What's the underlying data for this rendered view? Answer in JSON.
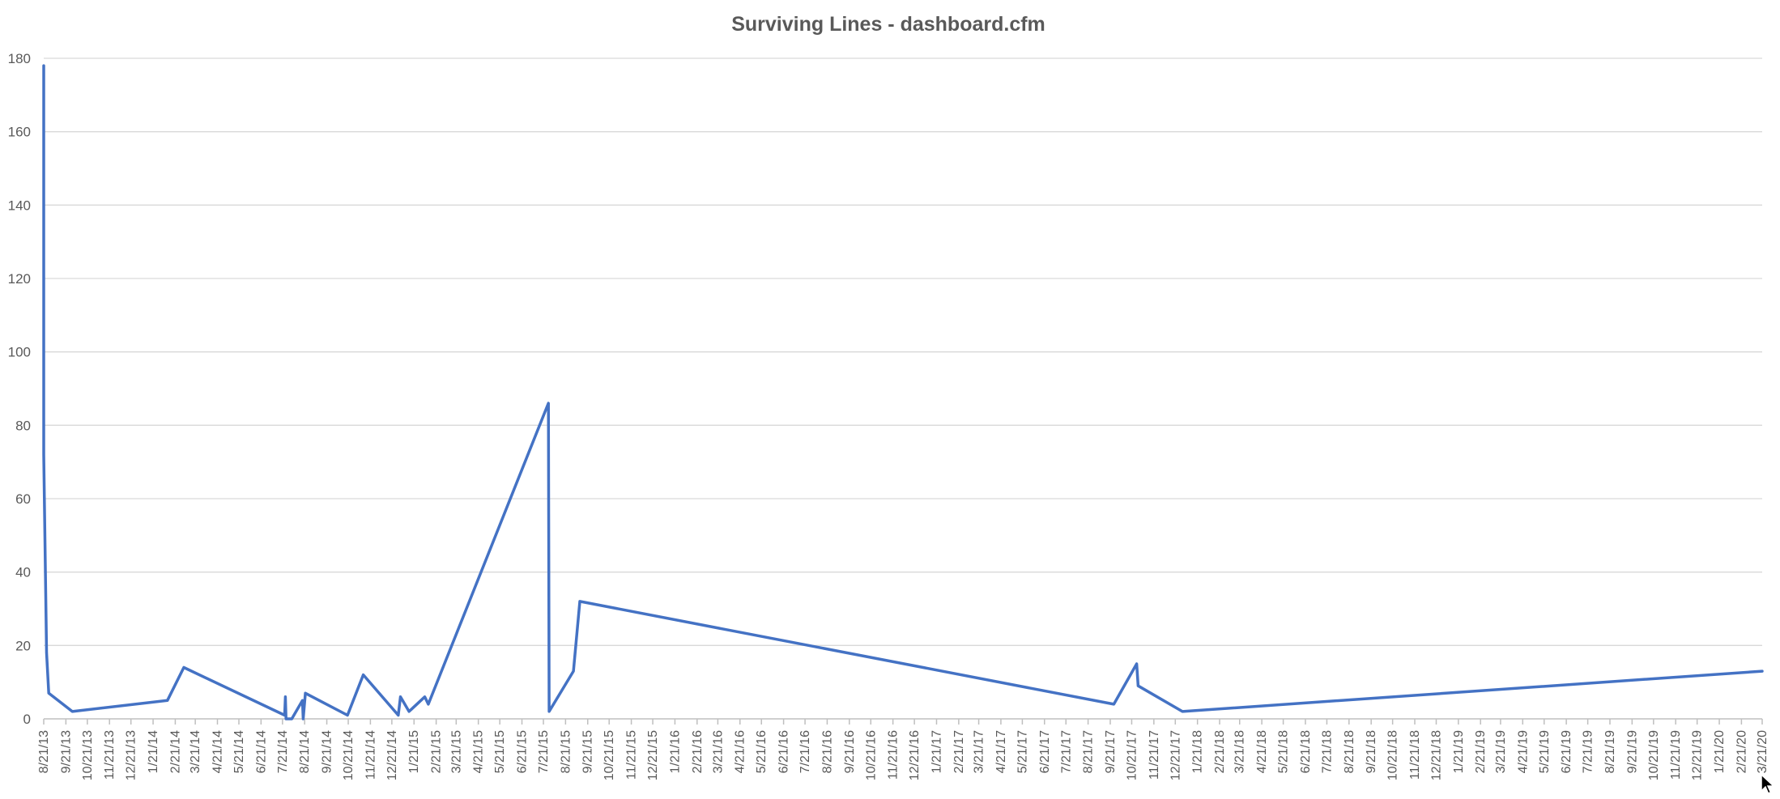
{
  "colors": {
    "series": "#4472C4",
    "grid": "#d9d9d9",
    "text": "#595959"
  },
  "chart_data": {
    "type": "line",
    "title": "Surviving Lines - dashboard.cfm",
    "xlabel": "",
    "ylabel": "",
    "ylim": [
      0,
      180
    ],
    "yticks": [
      0,
      20,
      40,
      60,
      80,
      100,
      120,
      140,
      160,
      180
    ],
    "grid": true,
    "legend": "none",
    "categories": [
      "8/21/13",
      "9/21/13",
      "10/21/13",
      "11/21/13",
      "12/21/13",
      "1/21/14",
      "2/21/14",
      "3/21/14",
      "4/21/14",
      "5/21/14",
      "6/21/14",
      "7/21/14",
      "8/21/14",
      "9/21/14",
      "10/21/14",
      "11/21/14",
      "12/21/14",
      "1/21/15",
      "2/21/15",
      "3/21/15",
      "4/21/15",
      "5/21/15",
      "6/21/15",
      "7/21/15",
      "8/21/15",
      "9/21/15",
      "10/21/15",
      "11/21/15",
      "12/21/15",
      "1/21/16",
      "2/21/16",
      "3/21/16",
      "4/21/16",
      "5/21/16",
      "6/21/16",
      "7/21/16",
      "8/21/16",
      "9/21/16",
      "10/21/16",
      "11/21/16",
      "12/21/16",
      "1/21/17",
      "2/21/17",
      "3/21/17",
      "4/21/17",
      "5/21/17",
      "6/21/17",
      "7/21/17",
      "8/21/17",
      "9/21/17",
      "10/21/17",
      "11/21/17",
      "12/21/17",
      "1/21/18",
      "2/21/18",
      "3/21/18",
      "4/21/18",
      "5/21/18",
      "6/21/18",
      "7/21/18",
      "8/21/18",
      "9/21/18",
      "10/21/18",
      "11/21/18",
      "12/21/18",
      "1/21/19",
      "2/21/19",
      "3/21/19",
      "4/21/19",
      "5/21/19",
      "6/21/19",
      "7/21/19",
      "8/21/19",
      "9/21/19",
      "10/21/19",
      "11/21/19",
      "12/21/19",
      "1/21/20",
      "2/21/20",
      "3/21/20"
    ],
    "series": [
      {
        "points": [
          {
            "x": "2013-08-21",
            "y": 178
          },
          {
            "x": "2013-08-21",
            "y": 72
          },
          {
            "x": "2013-08-25",
            "y": 18
          },
          {
            "x": "2013-08-28",
            "y": 7
          },
          {
            "x": "2013-09-30",
            "y": 2
          },
          {
            "x": "2014-02-10",
            "y": 5
          },
          {
            "x": "2014-03-05",
            "y": 14
          },
          {
            "x": "2014-07-24",
            "y": 1
          },
          {
            "x": "2014-07-25",
            "y": 6
          },
          {
            "x": "2014-07-26",
            "y": 0
          },
          {
            "x": "2014-08-03",
            "y": 0
          },
          {
            "x": "2014-08-18",
            "y": 5
          },
          {
            "x": "2014-08-19",
            "y": 0
          },
          {
            "x": "2014-08-22",
            "y": 7
          },
          {
            "x": "2014-10-20",
            "y": 1
          },
          {
            "x": "2014-11-11",
            "y": 12
          },
          {
            "x": "2014-12-30",
            "y": 1
          },
          {
            "x": "2015-01-02",
            "y": 6
          },
          {
            "x": "2015-01-14",
            "y": 2
          },
          {
            "x": "2015-02-05",
            "y": 6
          },
          {
            "x": "2015-02-10",
            "y": 4
          },
          {
            "x": "2015-07-28",
            "y": 86
          },
          {
            "x": "2015-07-29",
            "y": 2
          },
          {
            "x": "2015-09-01",
            "y": 13
          },
          {
            "x": "2015-09-10",
            "y": 32
          },
          {
            "x": "2017-09-26",
            "y": 4
          },
          {
            "x": "2017-10-28",
            "y": 15
          },
          {
            "x": "2017-10-30",
            "y": 9
          },
          {
            "x": "2017-12-31",
            "y": 2
          },
          {
            "x": "2020-03-21",
            "y": 13
          }
        ]
      }
    ]
  }
}
